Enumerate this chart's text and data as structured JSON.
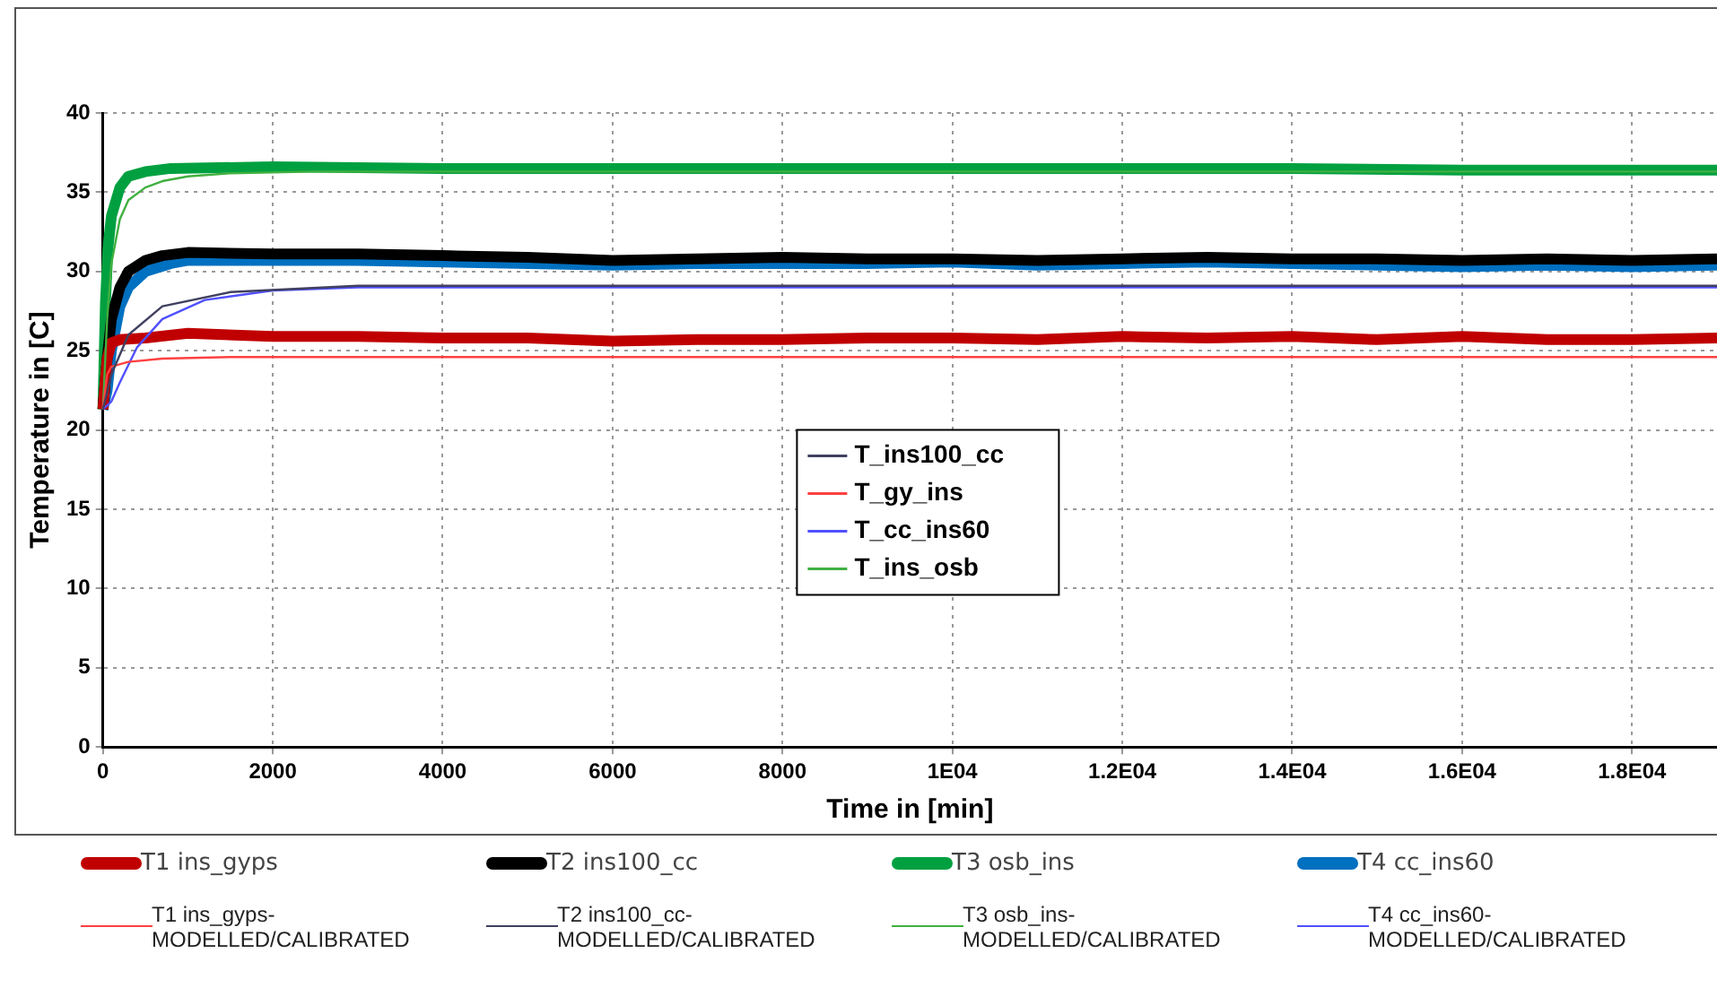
{
  "chart_data": {
    "type": "line",
    "xlabel": "Time in [min]",
    "ylabel": "Temperature in [C]",
    "xlim": [
      0,
      19000
    ],
    "xticks": [
      0,
      2000,
      4000,
      6000,
      8000,
      {
        "value": 10000,
        "label": "1E04"
      },
      {
        "value": 12000,
        "label": "1.2E04"
      },
      {
        "value": 14000,
        "label": "1.4E04"
      },
      {
        "value": 16000,
        "label": "1.6E04"
      },
      {
        "value": 18000,
        "label": "1.8E04"
      }
    ],
    "ylim": [
      0,
      40
    ],
    "yticks": [
      0,
      5,
      10,
      15,
      20,
      25,
      30,
      35,
      40
    ],
    "grid": true,
    "legend": "center",
    "marker": "none",
    "line_style": "solid",
    "series": [
      {
        "name": "T1 ins_gyps",
        "color": "#c00000",
        "x": [
          0,
          50,
          100,
          200,
          500,
          1000,
          2000,
          3000,
          4000,
          5000,
          6000,
          7000,
          8000,
          9000,
          10000,
          11000,
          12000,
          13000,
          14000,
          15000,
          16000,
          17000,
          18000,
          19000
        ],
        "values": [
          21.3,
          24.5,
          25.5,
          25.7,
          25.8,
          26.1,
          25.9,
          25.9,
          25.8,
          25.8,
          25.6,
          25.7,
          25.7,
          25.8,
          25.8,
          25.7,
          25.9,
          25.8,
          25.9,
          25.7,
          25.9,
          25.7,
          25.7,
          25.8
        ]
      },
      {
        "name": "T2 ins100_cc",
        "color": "#000000",
        "x": [
          0,
          50,
          100,
          200,
          300,
          500,
          700,
          1000,
          2000,
          3000,
          4000,
          5000,
          6000,
          7000,
          8000,
          9000,
          10000,
          11000,
          12000,
          13000,
          14000,
          15000,
          16000,
          17000,
          18000,
          19000
        ],
        "values": [
          21.3,
          24.5,
          27,
          29,
          30,
          30.7,
          31,
          31.2,
          31.1,
          31.1,
          31.0,
          30.9,
          30.7,
          30.8,
          30.9,
          30.8,
          30.8,
          30.7,
          30.8,
          30.9,
          30.8,
          30.8,
          30.7,
          30.8,
          30.7,
          30.8
        ]
      },
      {
        "name": "T3 osb_ins",
        "color": "#00a040",
        "x": [
          0,
          30,
          60,
          100,
          200,
          300,
          500,
          800,
          2000,
          4000,
          6000,
          8000,
          10000,
          12000,
          14000,
          16000,
          18000,
          19000
        ],
        "values": [
          21.3,
          28,
          31.5,
          33.5,
          35.3,
          36,
          36.3,
          36.5,
          36.6,
          36.5,
          36.5,
          36.5,
          36.5,
          36.5,
          36.5,
          36.4,
          36.4,
          36.4
        ]
      },
      {
        "name": "T4 cc_ins60",
        "color": "#0070c0",
        "x": [
          0,
          50,
          100,
          200,
          300,
          500,
          800,
          1000,
          2000,
          3000,
          4000,
          5000,
          6000,
          7000,
          8000,
          9000,
          10000,
          11000,
          12000,
          13000,
          14000,
          15000,
          16000,
          17000,
          18000,
          19000
        ],
        "values": [
          21.3,
          22.5,
          25,
          27.8,
          29,
          30,
          30.5,
          30.7,
          30.7,
          30.7,
          30.6,
          30.5,
          30.4,
          30.5,
          30.5,
          30.5,
          30.6,
          30.4,
          30.5,
          30.6,
          30.5,
          30.4,
          30.3,
          30.4,
          30.3,
          30.4
        ]
      },
      {
        "name": "T_ins100_cc",
        "color": "#404060",
        "x": [
          0,
          100,
          300,
          700,
          1500,
          3000,
          19000
        ],
        "values": [
          21.3,
          23.5,
          26,
          27.8,
          28.7,
          29.1,
          29.1
        ]
      },
      {
        "name": "T_gy_ins",
        "color": "#ff4040",
        "x": [
          0,
          50,
          100,
          300,
          700,
          1500,
          3000,
          19000
        ],
        "values": [
          21.3,
          23.5,
          24.0,
          24.3,
          24.5,
          24.6,
          24.6,
          24.6
        ]
      },
      {
        "name": "T_cc_ins60",
        "color": "#5050ff",
        "x": [
          0,
          100,
          200,
          400,
          700,
          1200,
          2000,
          3000,
          19000
        ],
        "values": [
          21.3,
          21.8,
          23,
          25.2,
          27,
          28.2,
          28.8,
          29.0,
          29.0
        ]
      },
      {
        "name": "T_ins_osb",
        "color": "#40b040",
        "x": [
          0,
          50,
          100,
          200,
          300,
          500,
          700,
          1000,
          1500,
          2500,
          19000
        ],
        "values": [
          21.3,
          27,
          30.5,
          33.3,
          34.5,
          35.3,
          35.7,
          36.0,
          36.2,
          36.3,
          36.3
        ]
      }
    ],
    "annotations": [
      "T1 ins_gyps-MODELLED/CALIBRATED",
      "T2 ins100_cc-MODELLED/CALIBRATED",
      "T3 osb_ins-MODELLED/CALIBRATED",
      "T4 cc_ins60-MODELLED/CALIBRATED"
    ]
  }
}
